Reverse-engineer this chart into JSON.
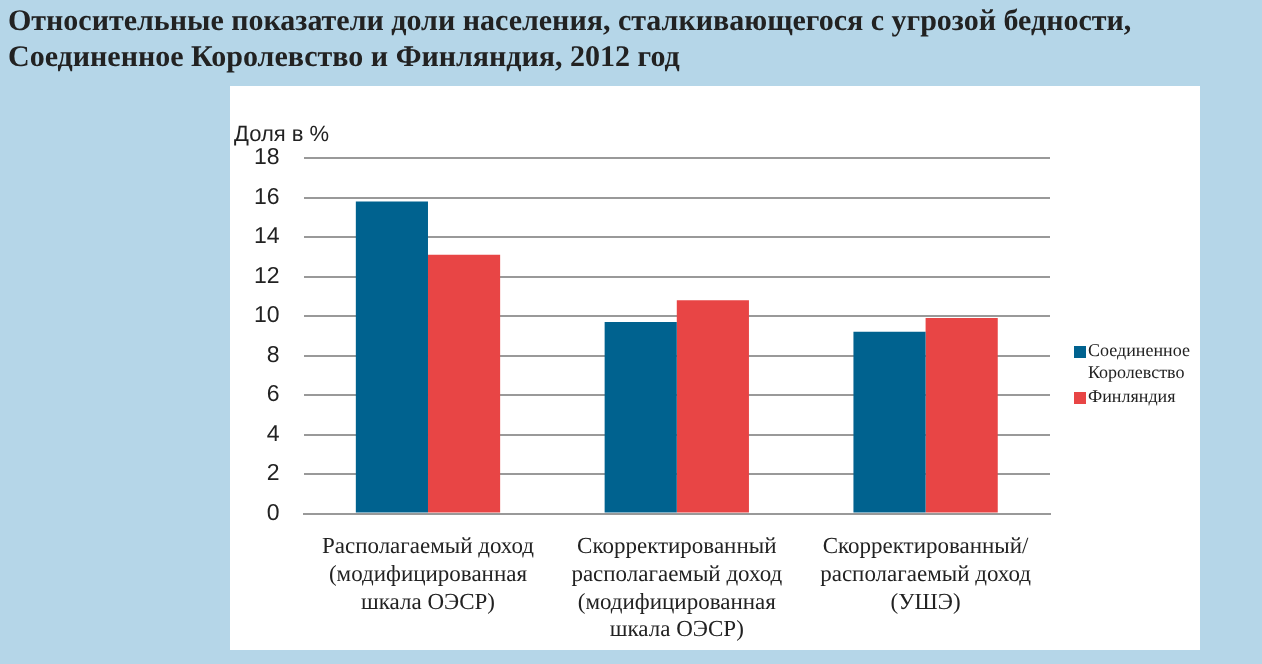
{
  "chart_data": {
    "type": "bar",
    "title": "Относительные показатели доли населения, сталкивающегося с угрозой бедности, Соединенное Королевство и Финляндия, 2012 год",
    "ylabel": "Доля в %",
    "categories": [
      "Располагаемый доход (модифицированная шкала ОЭСР)",
      "Скорректированный располагаемый доход (модифицированная шкала ОЭСР)",
      "Скорректированный/ располагаемый доход (УШЭ)"
    ],
    "series": [
      {
        "name": "Соединенное Королевство",
        "color": "#00628f",
        "values": [
          15.8,
          9.7,
          9.2
        ]
      },
      {
        "name": "Финляндия",
        "color": "#e84545",
        "values": [
          13.1,
          10.8,
          9.9
        ]
      }
    ],
    "ylim": [
      0,
      18
    ],
    "yticks": [
      0,
      2,
      4,
      6,
      8,
      10,
      12,
      14,
      16,
      18
    ],
    "grid": "y",
    "legend": "right"
  }
}
